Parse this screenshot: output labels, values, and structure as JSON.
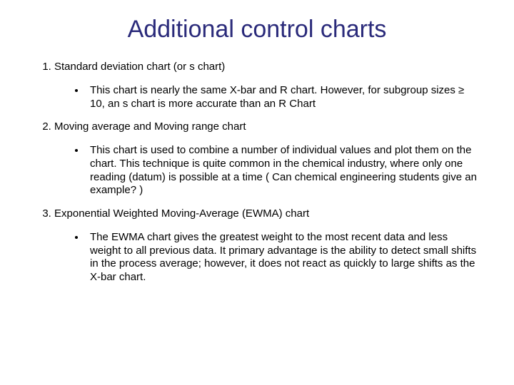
{
  "title_color": "#2a2a7a",
  "body_color": "#000000",
  "title": "Additional control charts",
  "items": [
    {
      "heading": "Standard deviation chart (or s chart)",
      "bullet": "This chart is nearly the same X-bar and R chart. However, for subgroup sizes ≥ 10, an s chart is more accurate than an R Chart"
    },
    {
      "heading": "Moving average and Moving range chart",
      "bullet": "This chart is used to combine a number of individual values and plot them on the chart. This technique is quite common in the chemical industry, where only one reading (datum) is possible at a time ( Can chemical engineering students give an example? )"
    },
    {
      "heading": "Exponential Weighted Moving-Average (EWMA) chart",
      "bullet": "The EWMA chart gives the greatest weight to the most recent data and less weight to all previous data. It primary advantage is the ability to detect small shifts in the process average; however, it does not react as quickly to large shifts as the X-bar chart."
    }
  ]
}
